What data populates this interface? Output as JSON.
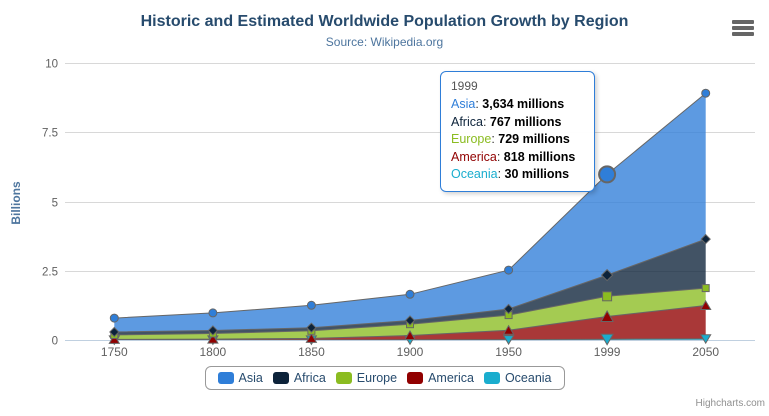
{
  "header": {
    "title": "Historic and Estimated Worldwide Population Growth by Region",
    "subtitle": "Source: Wikipedia.org"
  },
  "chart_data": {
    "type": "area",
    "stacking": "normal",
    "categories": [
      "1750",
      "1800",
      "1850",
      "1900",
      "1950",
      "1999",
      "2050"
    ],
    "series": [
      {
        "name": "Asia",
        "color": "#2f7ed8",
        "marker": "circle",
        "values": [
          502,
          635,
          809,
          947,
          1402,
          3634,
          5268
        ]
      },
      {
        "name": "Africa",
        "color": "#0d233a",
        "marker": "diamond",
        "values": [
          106,
          107,
          111,
          133,
          221,
          767,
          1766
        ]
      },
      {
        "name": "Europe",
        "color": "#8bbc21",
        "marker": "square",
        "values": [
          163,
          203,
          276,
          408,
          547,
          729,
          628
        ]
      },
      {
        "name": "America",
        "color": "#910000",
        "marker": "triangle",
        "values": [
          18,
          31,
          54,
          156,
          339,
          818,
          1201
        ]
      },
      {
        "name": "Oceania",
        "color": "#1aadce",
        "marker": "triangle-down",
        "values": [
          2,
          2,
          2,
          6,
          13,
          30,
          46
        ]
      }
    ],
    "value_unit": "millions",
    "ylabel": "Billions",
    "ylim": [
      0,
      10
    ],
    "yticks": [
      0,
      2.5,
      5,
      7.5,
      10
    ],
    "ytick_labels": [
      "0",
      "2.5",
      "5",
      "7.5",
      "10"
    ],
    "grid": true,
    "legend_position": "bottom",
    "line_color": "#666666",
    "grid_color": "#d8d8d8",
    "axis_line_color": "#c0d0e0",
    "axis_label_color": "#606060",
    "fill_opacity": 0.78
  },
  "tooltip": {
    "header": "1999",
    "hover_index": 5,
    "border_color": "#2f7ed8",
    "rows": [
      {
        "name": "Asia",
        "color": "#2f7ed8",
        "value": "3,634 millions"
      },
      {
        "name": "Africa",
        "color": "#0d233a",
        "value": "767 millions"
      },
      {
        "name": "Europe",
        "color": "#8bbc21",
        "value": "729 millions"
      },
      {
        "name": "America",
        "color": "#910000",
        "value": "818 millions"
      },
      {
        "name": "Oceania",
        "color": "#1aadce",
        "value": "30 millions"
      }
    ]
  },
  "legend": {
    "items": [
      {
        "label": "Asia",
        "color": "#2f7ed8"
      },
      {
        "label": "Africa",
        "color": "#0d233a"
      },
      {
        "label": "Europe",
        "color": "#8bbc21"
      },
      {
        "label": "America",
        "color": "#910000"
      },
      {
        "label": "Oceania",
        "color": "#1aadce"
      }
    ]
  },
  "credits": "Highcharts.com"
}
